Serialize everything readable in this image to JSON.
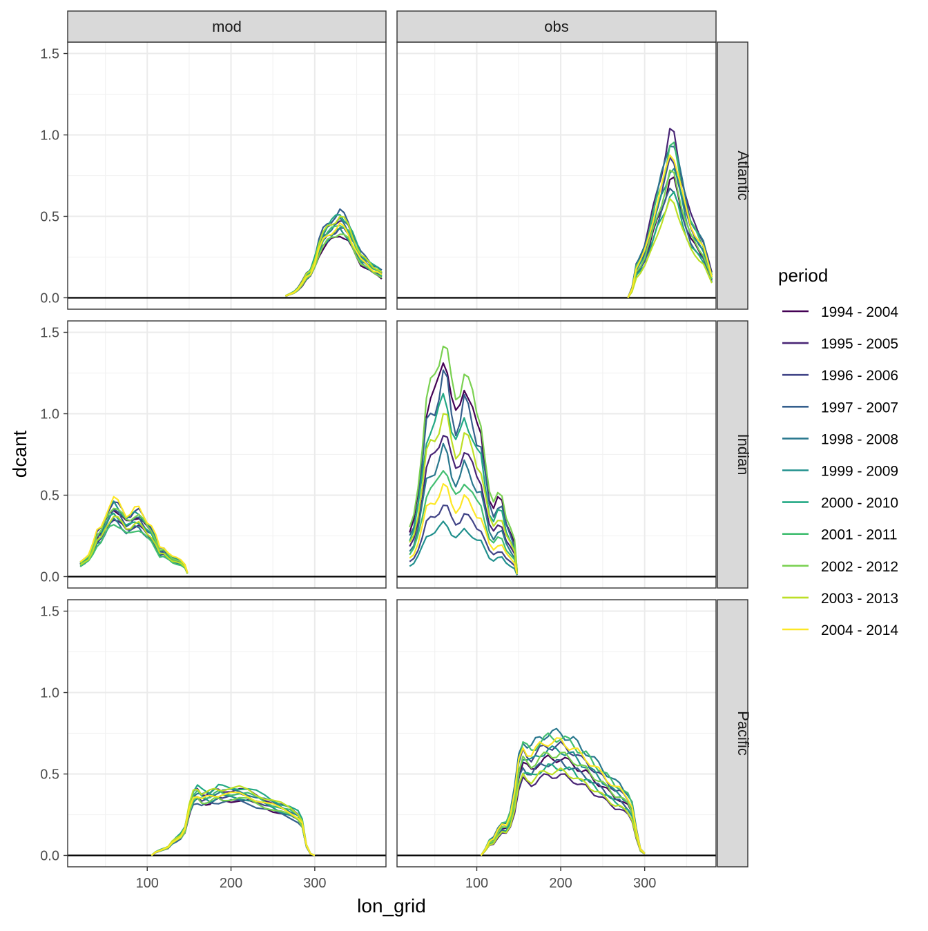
{
  "chart_data": {
    "type": "line",
    "xlabel": "lon_grid",
    "ylabel": "dcant",
    "legend_title": "period",
    "legend_position": "right",
    "grid": true,
    "xlim": [
      5,
      385
    ],
    "ylim": [
      -0.07,
      1.57
    ],
    "x_ticks": [
      100,
      200,
      300
    ],
    "y_ticks": [
      0.0,
      0.5,
      1.0,
      1.5
    ],
    "y_tick_labels": [
      "0.0",
      "0.5",
      "1.0",
      "1.5"
    ],
    "column_facets": [
      "mod",
      "obs"
    ],
    "row_facets": [
      "Atlantic",
      "Indian",
      "Pacific"
    ],
    "periods": [
      "1994 - 2004",
      "1995 - 2005",
      "1996 - 2006",
      "1997 - 2007",
      "1998 - 2008",
      "1999 - 2009",
      "2000 - 2010",
      "2001 - 2011",
      "2002 - 2012",
      "2003 - 2013",
      "2004 - 2014"
    ],
    "colors": [
      "#440154",
      "#482475",
      "#414487",
      "#355f8d",
      "#2a788e",
      "#21908d",
      "#22a884",
      "#42be71",
      "#7ad151",
      "#bddf26",
      "#fde725"
    ],
    "hline_y": 0,
    "panels": [
      {
        "row": "Atlantic",
        "col": "mod",
        "x": [
          265,
          270,
          275,
          280,
          285,
          290,
          295,
          300,
          305,
          310,
          315,
          320,
          325,
          330,
          335,
          340,
          345,
          350,
          355,
          360,
          365,
          370,
          375,
          380
        ],
        "base": [
          0.01,
          0.02,
          0.03,
          0.05,
          0.08,
          0.12,
          0.14,
          0.2,
          0.28,
          0.33,
          0.36,
          0.38,
          0.4,
          0.42,
          0.4,
          0.37,
          0.32,
          0.27,
          0.22,
          0.2,
          0.18,
          0.16,
          0.15,
          0.13
        ],
        "peak_range": [
          0.39,
          0.53
        ]
      },
      {
        "row": "Atlantic",
        "col": "obs",
        "x": [
          280,
          285,
          290,
          295,
          300,
          305,
          310,
          315,
          320,
          325,
          330,
          335,
          340,
          345,
          350,
          355,
          360,
          365,
          370,
          375,
          380
        ],
        "base": [
          0.0,
          0.05,
          0.17,
          0.21,
          0.26,
          0.34,
          0.44,
          0.54,
          0.62,
          0.7,
          0.8,
          0.8,
          0.7,
          0.58,
          0.48,
          0.4,
          0.36,
          0.32,
          0.28,
          0.2,
          0.12
        ],
        "peak_range": [
          0.59,
          1.0
        ]
      },
      {
        "row": "Indian",
        "col": "mod",
        "x": [
          20,
          25,
          30,
          35,
          40,
          45,
          50,
          55,
          60,
          65,
          70,
          75,
          80,
          85,
          90,
          95,
          100,
          105,
          110,
          115,
          120,
          125,
          130,
          135,
          140,
          145,
          148
        ],
        "base": [
          0.07,
          0.09,
          0.11,
          0.16,
          0.22,
          0.24,
          0.3,
          0.35,
          0.38,
          0.36,
          0.33,
          0.3,
          0.31,
          0.33,
          0.33,
          0.3,
          0.27,
          0.25,
          0.2,
          0.14,
          0.14,
          0.12,
          0.1,
          0.09,
          0.08,
          0.06,
          0.02
        ],
        "peak_range": [
          0.33,
          0.48
        ]
      },
      {
        "row": "Indian",
        "col": "obs",
        "x": [
          20,
          25,
          30,
          35,
          40,
          45,
          50,
          55,
          60,
          65,
          70,
          75,
          80,
          85,
          90,
          95,
          100,
          105,
          110,
          115,
          120,
          125,
          130,
          135,
          140,
          145,
          148
        ],
        "base": [
          0.08,
          0.1,
          0.15,
          0.22,
          0.3,
          0.32,
          0.33,
          0.36,
          0.4,
          0.38,
          0.32,
          0.29,
          0.31,
          0.35,
          0.33,
          0.3,
          0.27,
          0.26,
          0.2,
          0.14,
          0.12,
          0.14,
          0.14,
          0.1,
          0.08,
          0.06,
          0.01
        ],
        "peak_range": [
          0.33,
          1.47
        ]
      },
      {
        "row": "Pacific",
        "col": "mod",
        "x": [
          105,
          110,
          115,
          120,
          125,
          130,
          135,
          140,
          145,
          150,
          155,
          160,
          165,
          170,
          175,
          180,
          185,
          190,
          200,
          210,
          220,
          230,
          240,
          250,
          260,
          270,
          280,
          285,
          290,
          295,
          300
        ],
        "base": [
          0.0,
          0.02,
          0.03,
          0.04,
          0.05,
          0.08,
          0.1,
          0.12,
          0.16,
          0.28,
          0.36,
          0.38,
          0.36,
          0.36,
          0.36,
          0.37,
          0.38,
          0.38,
          0.38,
          0.38,
          0.37,
          0.35,
          0.33,
          0.31,
          0.29,
          0.27,
          0.24,
          0.2,
          0.06,
          0.01,
          0.0
        ],
        "peak_range": [
          0.33,
          0.42
        ]
      },
      {
        "row": "Pacific",
        "col": "obs",
        "x": [
          105,
          110,
          115,
          120,
          125,
          130,
          135,
          140,
          145,
          150,
          155,
          160,
          165,
          170,
          175,
          180,
          185,
          190,
          195,
          200,
          205,
          210,
          215,
          220,
          225,
          230,
          235,
          240,
          245,
          250,
          255,
          260,
          265,
          270,
          275,
          280,
          285,
          290,
          295,
          300
        ],
        "base": [
          0.0,
          0.03,
          0.07,
          0.08,
          0.12,
          0.15,
          0.15,
          0.2,
          0.3,
          0.45,
          0.52,
          0.5,
          0.49,
          0.51,
          0.53,
          0.54,
          0.55,
          0.55,
          0.55,
          0.55,
          0.54,
          0.53,
          0.52,
          0.5,
          0.48,
          0.47,
          0.45,
          0.43,
          0.41,
          0.39,
          0.37,
          0.35,
          0.33,
          0.32,
          0.3,
          0.28,
          0.24,
          0.12,
          0.03,
          0.01
        ],
        "peak_range": [
          0.49,
          0.75
        ]
      }
    ]
  }
}
